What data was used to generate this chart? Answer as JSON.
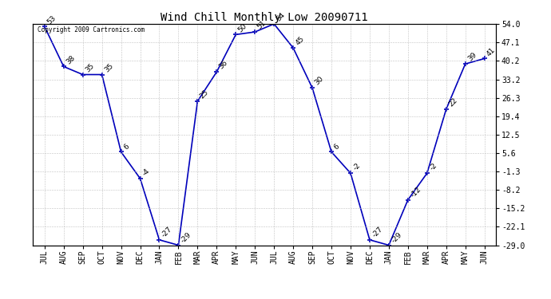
{
  "title": "Wind Chill Monthly Low 20090711",
  "copyright": "Copyright 2009 Cartronics.com",
  "x_labels": [
    "JUL",
    "AUG",
    "SEP",
    "OCT",
    "NOV",
    "DEC",
    "JAN",
    "FEB",
    "MAR",
    "APR",
    "MAY",
    "JUN",
    "JUL",
    "AUG",
    "SEP",
    "OCT",
    "NOV",
    "DEC",
    "JAN",
    "FEB",
    "MAR",
    "APR",
    "MAY",
    "JUN"
  ],
  "y_values": [
    53,
    38,
    35,
    35,
    6,
    -4,
    -27,
    -29,
    25,
    36,
    50,
    51,
    54,
    45,
    30,
    6,
    -2,
    -27,
    -29,
    -12,
    -2,
    22,
    39,
    41
  ],
  "y_labels": [
    "54.0",
    "47.1",
    "40.2",
    "33.2",
    "26.3",
    "19.4",
    "12.5",
    "5.6",
    "-1.3",
    "-8.2",
    "-15.2",
    "-22.1",
    "-29.0"
  ],
  "y_tick_vals": [
    54.0,
    47.1,
    40.2,
    33.2,
    26.3,
    19.4,
    12.5,
    5.6,
    -1.3,
    -8.2,
    -15.2,
    -22.1,
    -29.0
  ],
  "ylim_min": -29.0,
  "ylim_max": 54.0,
  "line_color": "#0000bb",
  "marker_color": "#0000bb",
  "grid_color": "#bbbbbb",
  "bg_color": "#ffffff",
  "title_fontsize": 10,
  "label_fontsize": 6.5,
  "tick_fontsize": 7,
  "copyright_fontsize": 5.5
}
